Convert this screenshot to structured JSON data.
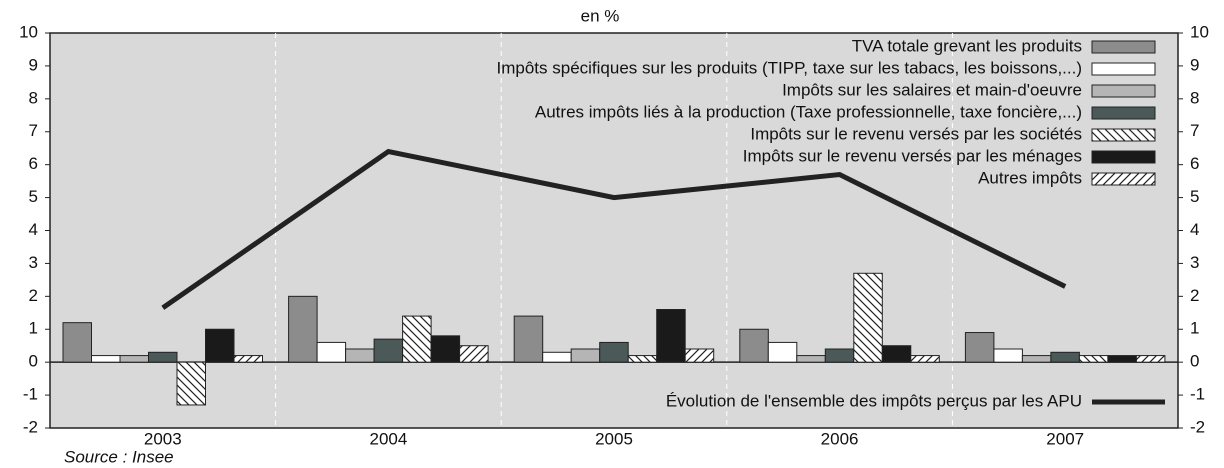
{
  "chart_data": {
    "type": "bar",
    "title": "en %",
    "source": "Source : Insee",
    "categories": [
      "2003",
      "2004",
      "2005",
      "2006",
      "2007"
    ],
    "ylim": [
      -2,
      10
    ],
    "yticks": [
      -2,
      -1,
      0,
      1,
      2,
      3,
      4,
      5,
      6,
      7,
      8,
      9,
      10
    ],
    "legend": "upper right",
    "series": [
      {
        "name": "TVA totale grevant les produits",
        "color": "#8c8c8c",
        "values": [
          1.2,
          2.0,
          1.4,
          1.0,
          0.9
        ]
      },
      {
        "name": "Impôts spécifiques sur les produits (TIPP, taxe sur les tabacs, les boissons,...)",
        "color": "#ffffff",
        "values": [
          0.2,
          0.6,
          0.3,
          0.6,
          0.4
        ]
      },
      {
        "name": "Impôts sur les salaires et main-d'oeuvre",
        "color": "#b5b5b5",
        "values": [
          0.2,
          0.4,
          0.4,
          0.2,
          0.2
        ]
      },
      {
        "name": "Autres impôts liés à la production (Taxe professionnelle, taxe foncière,...)",
        "color": "#4b5959",
        "values": [
          0.3,
          0.7,
          0.6,
          0.4,
          0.3
        ]
      },
      {
        "name": "Impôts sur le revenu versés par les sociétés",
        "color": "#ffffff",
        "hatch": "back",
        "values": [
          -1.3,
          1.4,
          0.2,
          2.7,
          0.2
        ]
      },
      {
        "name": "Impôts sur le revenu versés par les ménages",
        "color": "#1a1a1a",
        "values": [
          1.0,
          0.8,
          1.6,
          0.5,
          0.2
        ]
      },
      {
        "name": "Autres impôts",
        "color": "#ffffff",
        "hatch": "forward",
        "values": [
          0.2,
          0.5,
          0.4,
          0.2,
          0.2
        ]
      },
      {
        "name": "Évolution de l'ensemble des impôts perçus par les APU",
        "color": "#222222",
        "type": "line",
        "values": [
          1.65,
          6.4,
          5.0,
          5.7,
          2.3
        ]
      }
    ]
  }
}
